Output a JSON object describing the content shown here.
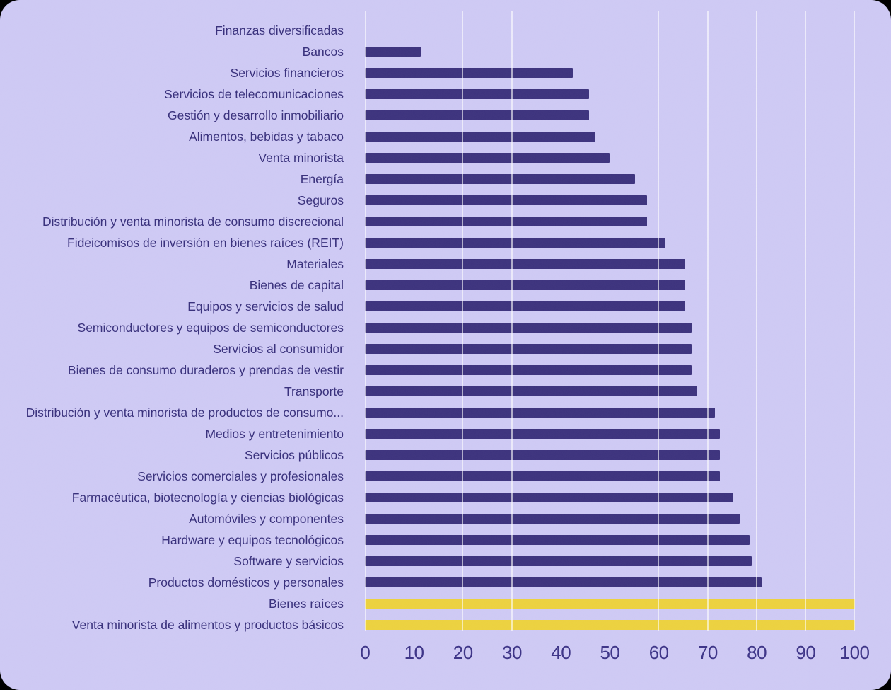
{
  "chart_data": {
    "type": "bar",
    "orientation": "horizontal",
    "title": "",
    "xlabel": "",
    "ylabel": "",
    "xlim": [
      0,
      100
    ],
    "xticks": [
      0,
      10,
      20,
      30,
      40,
      50,
      60,
      70,
      80,
      90,
      100
    ],
    "grid": "vertical",
    "legend": "none",
    "categories": [
      "Finanzas diversificadas",
      "Bancos",
      "Servicios financieros",
      "Servicios de telecomunicaciones",
      "Gestión y desarrollo inmobiliario",
      "Alimentos, bebidas y tabaco",
      "Venta minorista",
      "Energía",
      "Seguros",
      "Distribución y venta minorista de consumo discrecional",
      "Fideicomisos de inversión en bienes raíces (REIT)",
      "Materiales",
      "Bienes de capital",
      "Equipos y servicios de salud",
      "Semiconductores y equipos de semiconductores",
      "Servicios al consumidor",
      "Bienes de consumo duraderos y prendas de vestir",
      "Transporte",
      "Distribución y venta minorista de productos de consumo...",
      "Medios y entretenimiento",
      "Servicios públicos",
      "Servicios comerciales y profesionales",
      "Farmacéutica, biotecnología y ciencias biológicas",
      "Automóviles y componentes",
      "Hardware y equipos tecnológicos",
      "Software y servicios",
      "Productos domésticos y personales",
      "Bienes raíces",
      "Venta minorista de alimentos y productos básicos"
    ],
    "values": [
      0,
      11.3,
      42.4,
      45.7,
      45.7,
      47.1,
      50.0,
      55.2,
      57.6,
      57.6,
      61.4,
      65.4,
      65.4,
      65.4,
      66.7,
      66.7,
      66.7,
      67.9,
      71.4,
      72.4,
      72.4,
      72.4,
      75.0,
      76.5,
      78.6,
      79.0,
      81.0,
      100,
      100
    ],
    "bar_colors": [
      "#3D337E",
      "#3D337E",
      "#3D337E",
      "#3D337E",
      "#3D337E",
      "#3D337E",
      "#3D337E",
      "#3D337E",
      "#3D337E",
      "#3D337E",
      "#3D337E",
      "#3D337E",
      "#3D337E",
      "#3D337E",
      "#3D337E",
      "#3D337E",
      "#3D337E",
      "#3D337E",
      "#3D337E",
      "#3D337E",
      "#3D337E",
      "#3D337E",
      "#3D337E",
      "#3D337E",
      "#3D337E",
      "#3D337E",
      "#3D337E",
      "#EDD23F",
      "#EDD23F"
    ],
    "colors": {
      "background": "#CFCAF5",
      "bar_default": "#3D337E",
      "bar_highlight": "#EDD23F",
      "label_text": "#38307C",
      "tick_text": "#3D3488",
      "gridline": "rgba(255,255,255,0.6)"
    }
  }
}
